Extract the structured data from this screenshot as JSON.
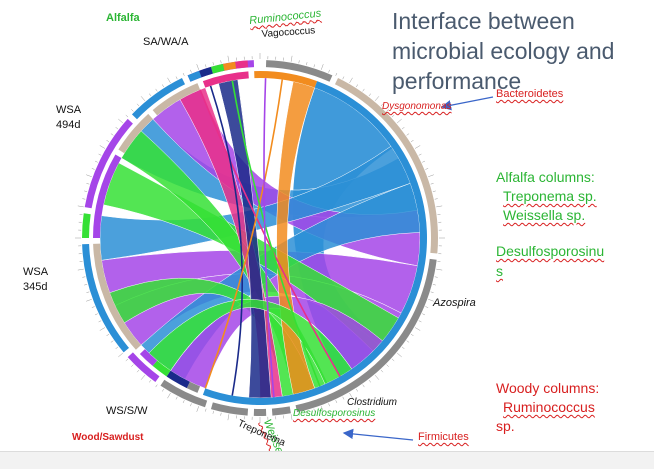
{
  "title": "Interface between microbial ecology and performance",
  "groups": {
    "alfalfa": "Alfalfa",
    "sawa": "SA/WA/A",
    "wsa494_line1": "WSA",
    "wsa494_line2": "494d",
    "wsa345_line1": "WSA",
    "wsa345_line2": "345d",
    "wssw": "WS/S/W",
    "wood": "Wood/Sawdust"
  },
  "taxa": {
    "ruminococcus": "Ruminococcus",
    "vagococcus": "Vagococcus",
    "dysgonomonas": "Dysgonomonas",
    "azospira": "Azospira",
    "clostridium": "Clostridium",
    "desulfosporosinus": "Desulfosporosinus",
    "weissella": "Weissella",
    "treponema": "Treponema"
  },
  "annotations": {
    "bacteroidetes": "Bacteroidetes",
    "firmicutes": "Firmicutes"
  },
  "side_notes": {
    "alfalfa_cols": "Alfalfa columns:",
    "treponema_sp": "Treponema sp.",
    "weissella_sp": "Weissella sp.",
    "desulfo_part1": "Desulfosporosinu",
    "desulfo_part2": "s",
    "woody_cols": "Woody columns:",
    "rumino_col": "Ruminococcus",
    "sp": "sp."
  },
  "colors": {
    "blue": "#2b8fd6",
    "purple": "#a545e8",
    "green": "#35e035",
    "orange": "#f28c1e",
    "pink": "#e8308a",
    "navy": "#1a2a8a",
    "gray": "#8a8a8a",
    "tan": "#c9b8a6",
    "title": "#4a5a6e",
    "label_green": "#2bb534",
    "label_red": "#d81f1f"
  }
}
